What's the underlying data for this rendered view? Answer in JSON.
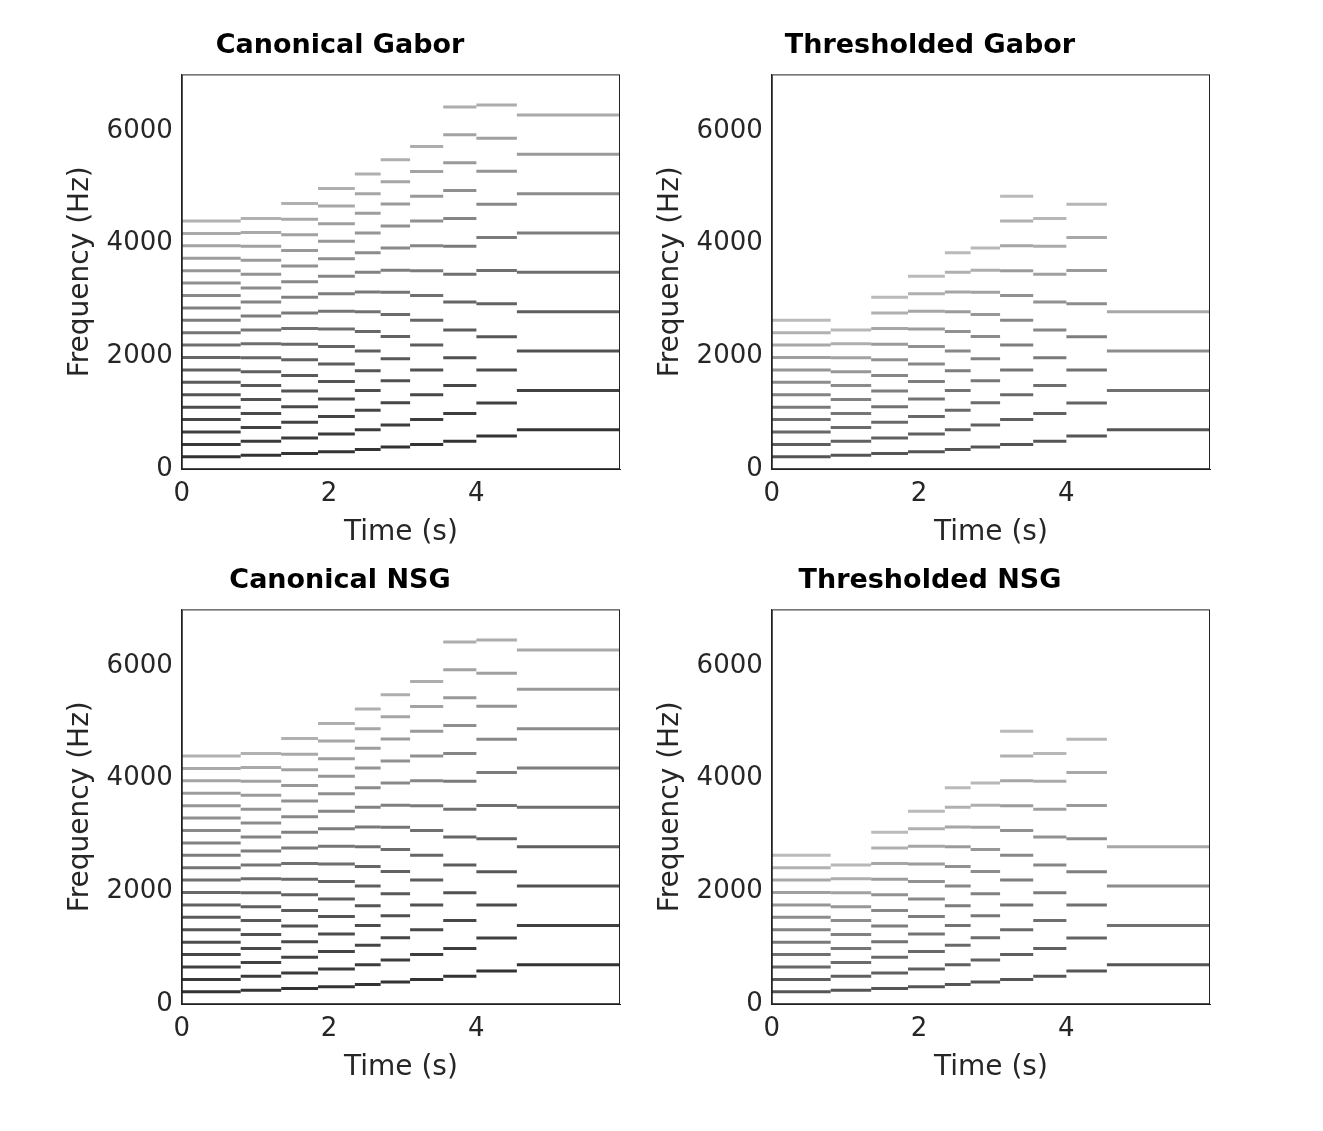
{
  "chart_data": [
    {
      "type": "spectrogram",
      "title": "Canonical Gabor",
      "x_label": "Time (s)",
      "y_label": "Frequency (Hz)",
      "xlim": [
        0,
        5.95
      ],
      "xticks": [
        0,
        2,
        4
      ],
      "ylim": [
        0,
        7000
      ],
      "yticks": [
        0,
        2000,
        4000,
        6000
      ],
      "grid": false,
      "color": "#333333",
      "notes": [
        {
          "start": 0,
          "end": 0.8,
          "frequencies": [
            220,
            440,
            660,
            880,
            1100,
            1320,
            1540,
            1760,
            1980,
            2200,
            2420,
            2640,
            2860,
            3080,
            3300,
            3520,
            3740,
            3960,
            4180,
            4400
          ]
        },
        {
          "start": 0.8,
          "end": 1.35,
          "frequencies": [
            247,
            494,
            741,
            988,
            1235,
            1482,
            1729,
            1976,
            2223,
            2470,
            2717,
            2964,
            3211,
            3458,
            3705,
            3952,
            4199,
            4446
          ]
        },
        {
          "start": 1.35,
          "end": 1.85,
          "frequencies": [
            277,
            554,
            831,
            1108,
            1385,
            1662,
            1939,
            2216,
            2493,
            2770,
            3047,
            3324,
            3601,
            3878,
            4155,
            4432,
            4709
          ]
        },
        {
          "start": 1.85,
          "end": 2.35,
          "frequencies": [
            311,
            622,
            933,
            1244,
            1555,
            1866,
            2177,
            2488,
            2799,
            3110,
            3421,
            3732,
            4043,
            4354,
            4665,
            4976
          ]
        },
        {
          "start": 2.35,
          "end": 2.7,
          "frequencies": [
            349,
            698,
            1047,
            1396,
            1745,
            2094,
            2443,
            2792,
            3141,
            3490,
            3839,
            4188,
            4537,
            4886,
            5235
          ]
        },
        {
          "start": 2.7,
          "end": 3.1,
          "frequencies": [
            392,
            784,
            1176,
            1568,
            1960,
            2352,
            2744,
            3136,
            3528,
            3920,
            4312,
            4704,
            5096,
            5488
          ]
        },
        {
          "start": 3.1,
          "end": 3.55,
          "frequencies": [
            440,
            880,
            1320,
            1760,
            2200,
            2640,
            3080,
            3520,
            3960,
            4400,
            4840,
            5280,
            5720
          ]
        },
        {
          "start": 3.55,
          "end": 4.0,
          "frequencies": [
            494,
            988,
            1482,
            1976,
            2470,
            2964,
            3458,
            3952,
            4446,
            4940,
            5434,
            5928,
            6422
          ]
        },
        {
          "start": 4.0,
          "end": 4.55,
          "frequencies": [
            587,
            1174,
            1761,
            2348,
            2935,
            3522,
            4109,
            4696,
            5283,
            5870,
            6457
          ]
        },
        {
          "start": 4.55,
          "end": 5.95,
          "frequencies": [
            698,
            1396,
            2094,
            2792,
            3490,
            4188,
            4886,
            5584,
            6282
          ]
        }
      ]
    },
    {
      "type": "spectrogram",
      "title": "Thresholded Gabor",
      "x_label": "Time (s)",
      "y_label": "Frequency (Hz)",
      "xlim": [
        0,
        5.95
      ],
      "xticks": [
        0,
        2,
        4
      ],
      "ylim": [
        0,
        7000
      ],
      "yticks": [
        0,
        2000,
        4000,
        6000
      ],
      "grid": false,
      "color": "#555555",
      "notes": [
        {
          "start": 0,
          "end": 0.8,
          "frequencies": [
            220,
            440,
            660,
            880,
            1100,
            1320,
            1540,
            1760,
            1980,
            2200,
            2420,
            2640
          ]
        },
        {
          "start": 0.8,
          "end": 1.35,
          "frequencies": [
            247,
            494,
            741,
            988,
            1235,
            1482,
            1729,
            1976,
            2223,
            2470
          ]
        },
        {
          "start": 1.35,
          "end": 1.85,
          "frequencies": [
            277,
            554,
            831,
            1108,
            1385,
            1662,
            1939,
            2216,
            2493,
            2770,
            3047
          ]
        },
        {
          "start": 1.85,
          "end": 2.35,
          "frequencies": [
            311,
            622,
            933,
            1244,
            1555,
            1866,
            2177,
            2488,
            2799,
            3110,
            3421
          ]
        },
        {
          "start": 2.35,
          "end": 2.7,
          "frequencies": [
            349,
            698,
            1047,
            1396,
            1745,
            2094,
            2443,
            2792,
            3141,
            3490,
            3839
          ]
        },
        {
          "start": 2.7,
          "end": 3.1,
          "frequencies": [
            392,
            784,
            1176,
            1568,
            1960,
            2352,
            2744,
            3136,
            3528,
            3920
          ]
        },
        {
          "start": 3.1,
          "end": 3.55,
          "frequencies": [
            440,
            880,
            1320,
            1760,
            2200,
            2640,
            3080,
            3520,
            3960,
            4400,
            4840
          ]
        },
        {
          "start": 3.55,
          "end": 4.0,
          "frequencies": [
            494,
            988,
            1482,
            1976,
            2470,
            2964,
            3458,
            3952,
            4446
          ]
        },
        {
          "start": 4.0,
          "end": 4.55,
          "frequencies": [
            587,
            1174,
            1761,
            2348,
            2935,
            3522,
            4109,
            4696
          ]
        },
        {
          "start": 4.55,
          "end": 5.95,
          "frequencies": [
            698,
            1396,
            2094,
            2792
          ]
        }
      ]
    },
    {
      "type": "spectrogram",
      "title": "Canonical NSG",
      "x_label": "Time (s)",
      "y_label": "Frequency (Hz)",
      "xlim": [
        0,
        5.95
      ],
      "xticks": [
        0,
        2,
        4
      ],
      "ylim": [
        0,
        7000
      ],
      "yticks": [
        0,
        2000,
        4000,
        6000
      ],
      "grid": false,
      "color": "#333333",
      "notes": [
        {
          "start": 0,
          "end": 0.8,
          "frequencies": [
            220,
            440,
            660,
            880,
            1100,
            1320,
            1540,
            1760,
            1980,
            2200,
            2420,
            2640,
            2860,
            3080,
            3300,
            3520,
            3740,
            3960,
            4180,
            4400
          ]
        },
        {
          "start": 0.8,
          "end": 1.35,
          "frequencies": [
            247,
            494,
            741,
            988,
            1235,
            1482,
            1729,
            1976,
            2223,
            2470,
            2717,
            2964,
            3211,
            3458,
            3705,
            3952,
            4199,
            4446
          ]
        },
        {
          "start": 1.35,
          "end": 1.85,
          "frequencies": [
            277,
            554,
            831,
            1108,
            1385,
            1662,
            1939,
            2216,
            2493,
            2770,
            3047,
            3324,
            3601,
            3878,
            4155,
            4432,
            4709
          ]
        },
        {
          "start": 1.85,
          "end": 2.35,
          "frequencies": [
            311,
            622,
            933,
            1244,
            1555,
            1866,
            2177,
            2488,
            2799,
            3110,
            3421,
            3732,
            4043,
            4354,
            4665,
            4976
          ]
        },
        {
          "start": 2.35,
          "end": 2.7,
          "frequencies": [
            349,
            698,
            1047,
            1396,
            1745,
            2094,
            2443,
            2792,
            3141,
            3490,
            3839,
            4188,
            4537,
            4886,
            5235
          ]
        },
        {
          "start": 2.7,
          "end": 3.1,
          "frequencies": [
            392,
            784,
            1176,
            1568,
            1960,
            2352,
            2744,
            3136,
            3528,
            3920,
            4312,
            4704,
            5096,
            5488
          ]
        },
        {
          "start": 3.1,
          "end": 3.55,
          "frequencies": [
            440,
            880,
            1320,
            1760,
            2200,
            2640,
            3080,
            3520,
            3960,
            4400,
            4840,
            5280,
            5720
          ]
        },
        {
          "start": 3.55,
          "end": 4.0,
          "frequencies": [
            494,
            988,
            1482,
            1976,
            2470,
            2964,
            3458,
            3952,
            4446,
            4940,
            5434,
            5928,
            6422
          ]
        },
        {
          "start": 4.0,
          "end": 4.55,
          "frequencies": [
            587,
            1174,
            1761,
            2348,
            2935,
            3522,
            4109,
            4696,
            5283,
            5870,
            6457
          ]
        },
        {
          "start": 4.55,
          "end": 5.95,
          "frequencies": [
            698,
            1396,
            2094,
            2792,
            3490,
            4188,
            4886,
            5584,
            6282
          ]
        }
      ]
    },
    {
      "type": "spectrogram",
      "title": "Thresholded NSG",
      "x_label": "Time (s)",
      "y_label": "Frequency (Hz)",
      "xlim": [
        0,
        5.95
      ],
      "xticks": [
        0,
        2,
        4
      ],
      "ylim": [
        0,
        7000
      ],
      "yticks": [
        0,
        2000,
        4000,
        6000
      ],
      "grid": false,
      "color": "#555555",
      "notes": [
        {
          "start": 0,
          "end": 0.8,
          "frequencies": [
            220,
            440,
            660,
            880,
            1100,
            1320,
            1540,
            1760,
            1980,
            2200,
            2420,
            2640
          ]
        },
        {
          "start": 0.8,
          "end": 1.35,
          "frequencies": [
            247,
            494,
            741,
            988,
            1235,
            1482,
            1729,
            1976,
            2223,
            2470
          ]
        },
        {
          "start": 1.35,
          "end": 1.85,
          "frequencies": [
            277,
            554,
            831,
            1108,
            1385,
            1662,
            1939,
            2216,
            2493,
            2770,
            3047
          ]
        },
        {
          "start": 1.85,
          "end": 2.35,
          "frequencies": [
            311,
            622,
            933,
            1244,
            1555,
            1866,
            2177,
            2488,
            2799,
            3110,
            3421
          ]
        },
        {
          "start": 2.35,
          "end": 2.7,
          "frequencies": [
            349,
            698,
            1047,
            1396,
            1745,
            2094,
            2443,
            2792,
            3141,
            3490,
            3839
          ]
        },
        {
          "start": 2.7,
          "end": 3.1,
          "frequencies": [
            392,
            784,
            1176,
            1568,
            1960,
            2352,
            2744,
            3136,
            3528,
            3920
          ]
        },
        {
          "start": 3.1,
          "end": 3.55,
          "frequencies": [
            440,
            880,
            1320,
            1760,
            2200,
            2640,
            3080,
            3520,
            3960,
            4400,
            4840
          ]
        },
        {
          "start": 3.55,
          "end": 4.0,
          "frequencies": [
            494,
            988,
            1482,
            1976,
            2470,
            2964,
            3458,
            3952,
            4446
          ]
        },
        {
          "start": 4.0,
          "end": 4.55,
          "frequencies": [
            587,
            1174,
            1761,
            2348,
            2935,
            3522,
            4109,
            4696
          ]
        },
        {
          "start": 4.55,
          "end": 5.95,
          "frequencies": [
            698,
            1396,
            2094,
            2792
          ]
        }
      ]
    }
  ]
}
